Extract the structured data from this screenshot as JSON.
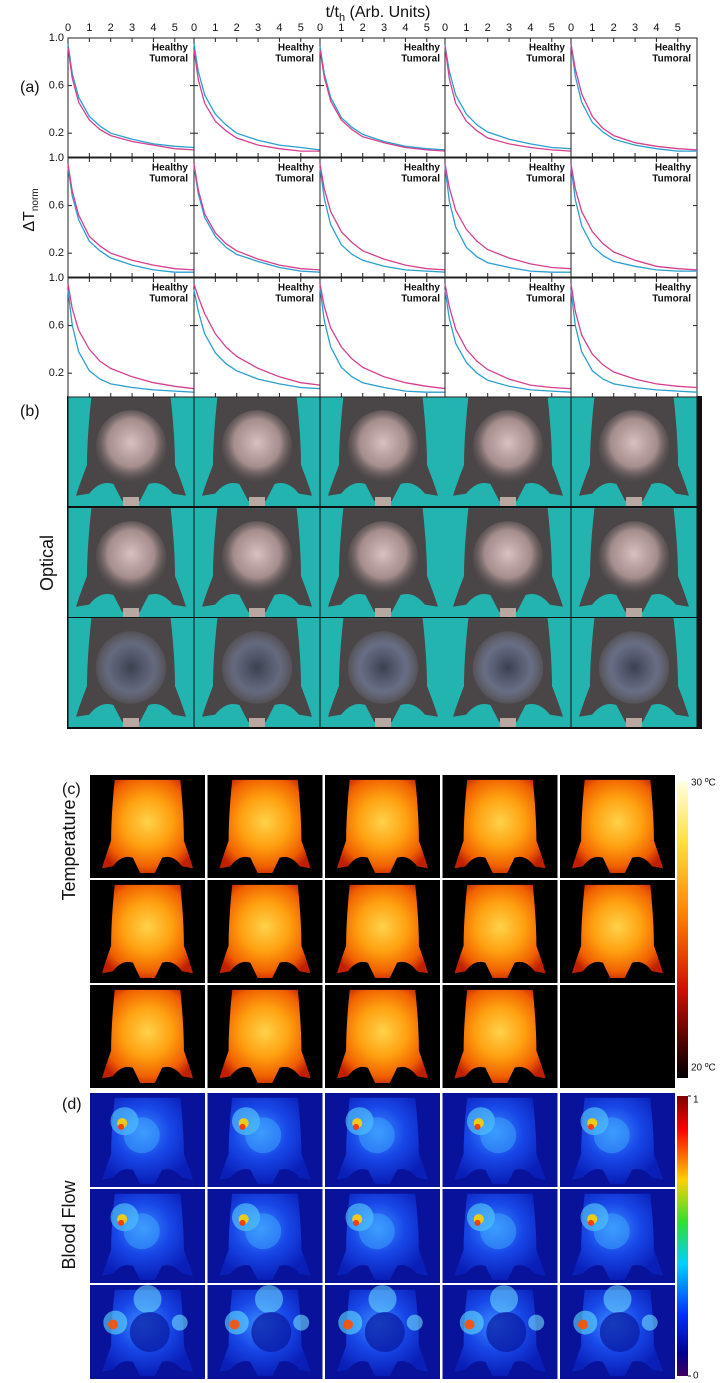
{
  "figure": {
    "xlabel": {
      "main": "t/t",
      "sub": "h",
      "rest": " (Arb. Units)"
    },
    "ylabel": {
      "main": "ΔT",
      "sub": "norm"
    },
    "panels": [
      "(a)",
      "(b)",
      "(c)",
      "(d)"
    ],
    "row_labels": {
      "optical": "Optical",
      "temperature": "Temperature",
      "blood_flow": "Blood Flow"
    },
    "temperature_colorbar": {
      "max": "30 ºC",
      "min": "20 ºC"
    },
    "flow_colorbar": {
      "ticks": [
        0,
        1
      ]
    }
  },
  "chart_data": [
    {
      "type": "line",
      "x": [
        0,
        0.2,
        0.5,
        1,
        1.5,
        2,
        3,
        4,
        5,
        5.9
      ],
      "xlim": [
        0,
        5.9
      ],
      "ylim": [
        0,
        1
      ],
      "xticks": [
        0,
        1,
        2,
        3,
        4,
        5
      ],
      "yticks": [
        0.2,
        0.6,
        {
          "value": 1,
          "label": "1.0"
        }
      ],
      "series": [
        {
          "name": "Healthy",
          "color": "#2b9fd1",
          "values": [
            0.95,
            0.7,
            0.5,
            0.34,
            0.26,
            0.2,
            0.15,
            0.11,
            0.09,
            0.08
          ]
        },
        {
          "name": "Tumoral",
          "color": "#d6408f",
          "values": [
            0.92,
            0.66,
            0.46,
            0.31,
            0.23,
            0.18,
            0.13,
            0.1,
            0.07,
            0.06
          ]
        }
      ]
    },
    {
      "type": "line",
      "x": [
        0,
        0.2,
        0.5,
        1,
        1.5,
        2,
        3,
        4,
        5,
        5.9
      ],
      "xlim": [
        0,
        5.9
      ],
      "ylim": [
        0,
        1
      ],
      "xticks": [
        0,
        1,
        2,
        3,
        4,
        5
      ],
      "yticks": [
        0.2,
        0.6,
        {
          "value": 1,
          "label": "1.0"
        }
      ],
      "series": [
        {
          "name": "Healthy",
          "color": "#2b9fd1",
          "values": [
            0.95,
            0.72,
            0.52,
            0.36,
            0.27,
            0.2,
            0.14,
            0.1,
            0.08,
            0.06
          ]
        },
        {
          "name": "Tumoral",
          "color": "#d6408f",
          "values": [
            0.9,
            0.65,
            0.45,
            0.3,
            0.22,
            0.16,
            0.1,
            0.07,
            0.05,
            0.05
          ]
        }
      ]
    },
    {
      "type": "line",
      "x": [
        0,
        0.2,
        0.5,
        1,
        1.5,
        2,
        3,
        4,
        5,
        5.9
      ],
      "xlim": [
        0,
        5.9
      ],
      "ylim": [
        0,
        1
      ],
      "xticks": [
        0,
        1,
        2,
        3,
        4,
        5
      ],
      "yticks": [
        0.2,
        0.6,
        {
          "value": 1,
          "label": "1.0"
        }
      ],
      "series": [
        {
          "name": "Healthy",
          "color": "#2b9fd1",
          "values": [
            0.93,
            0.7,
            0.5,
            0.33,
            0.25,
            0.19,
            0.13,
            0.09,
            0.07,
            0.06
          ]
        },
        {
          "name": "Tumoral",
          "color": "#d6408f",
          "values": [
            0.9,
            0.67,
            0.47,
            0.31,
            0.23,
            0.17,
            0.12,
            0.08,
            0.06,
            0.05
          ]
        }
      ]
    },
    {
      "type": "line",
      "x": [
        0,
        0.2,
        0.5,
        1,
        1.5,
        2,
        3,
        4,
        5,
        5.9
      ],
      "xlim": [
        0,
        5.9
      ],
      "ylim": [
        0,
        1
      ],
      "xticks": [
        0,
        1,
        2,
        3,
        4,
        5
      ],
      "yticks": [
        0.2,
        0.6,
        {
          "value": 1,
          "label": "1.0"
        }
      ],
      "series": [
        {
          "name": "Healthy",
          "color": "#2b9fd1",
          "values": [
            0.94,
            0.72,
            0.52,
            0.36,
            0.27,
            0.21,
            0.15,
            0.11,
            0.08,
            0.07
          ]
        },
        {
          "name": "Tumoral",
          "color": "#d6408f",
          "values": [
            0.93,
            0.66,
            0.45,
            0.3,
            0.22,
            0.16,
            0.11,
            0.08,
            0.06,
            0.05
          ]
        }
      ]
    },
    {
      "type": "line",
      "x": [
        0,
        0.2,
        0.5,
        1,
        1.5,
        2,
        3,
        4,
        5,
        5.9
      ],
      "xlim": [
        0,
        5.9
      ],
      "ylim": [
        0,
        1
      ],
      "xticks": [
        0,
        1,
        2,
        3,
        4,
        5
      ],
      "yticks": [
        0.2,
        0.6,
        {
          "value": 1,
          "label": "1.0"
        }
      ],
      "series": [
        {
          "name": "Healthy",
          "color": "#2b9fd1",
          "values": [
            0.95,
            0.68,
            0.46,
            0.29,
            0.21,
            0.15,
            0.1,
            0.07,
            0.05,
            0.05
          ]
        },
        {
          "name": "Tumoral",
          "color": "#d6408f",
          "values": [
            0.95,
            0.74,
            0.53,
            0.34,
            0.24,
            0.18,
            0.12,
            0.09,
            0.07,
            0.06
          ]
        }
      ]
    },
    {
      "type": "line",
      "x": [
        0,
        0.2,
        0.5,
        1,
        1.5,
        2,
        3,
        4,
        5,
        5.9
      ],
      "xlim": [
        0,
        5.9
      ],
      "ylim": [
        0,
        1
      ],
      "xticks": [
        0,
        1,
        2,
        3,
        4,
        5
      ],
      "yticks": [
        0.2,
        0.6,
        {
          "value": 1,
          "label": "1.0"
        }
      ],
      "series": [
        {
          "name": "Healthy",
          "color": "#2b9fd1",
          "values": [
            0.92,
            0.68,
            0.48,
            0.3,
            0.22,
            0.16,
            0.1,
            0.06,
            0.04,
            0.04
          ]
        },
        {
          "name": "Tumoral",
          "color": "#d6408f",
          "values": [
            0.95,
            0.72,
            0.52,
            0.34,
            0.26,
            0.2,
            0.14,
            0.1,
            0.07,
            0.06
          ]
        }
      ]
    },
    {
      "type": "line",
      "x": [
        0,
        0.2,
        0.5,
        1,
        1.5,
        2,
        3,
        4,
        5,
        5.9
      ],
      "xlim": [
        0,
        5.9
      ],
      "ylim": [
        0,
        1
      ],
      "xticks": [
        0,
        1,
        2,
        3,
        4,
        5
      ],
      "yticks": [
        0.2,
        0.6,
        {
          "value": 1,
          "label": "1.0"
        }
      ],
      "series": [
        {
          "name": "Healthy",
          "color": "#2b9fd1",
          "values": [
            0.93,
            0.7,
            0.5,
            0.34,
            0.25,
            0.19,
            0.13,
            0.08,
            0.05,
            0.04
          ]
        },
        {
          "name": "Tumoral",
          "color": "#d6408f",
          "values": [
            0.95,
            0.73,
            0.53,
            0.37,
            0.28,
            0.22,
            0.15,
            0.1,
            0.07,
            0.06
          ]
        }
      ]
    },
    {
      "type": "line",
      "x": [
        0,
        0.2,
        0.5,
        1,
        1.5,
        2,
        3,
        4,
        5,
        5.9
      ],
      "xlim": [
        0,
        5.9
      ],
      "ylim": [
        0,
        1
      ],
      "xticks": [
        0,
        1,
        2,
        3,
        4,
        5
      ],
      "yticks": [
        0.2,
        0.6,
        {
          "value": 1,
          "label": "1.0"
        }
      ],
      "series": [
        {
          "name": "Healthy",
          "color": "#2b9fd1",
          "values": [
            0.92,
            0.66,
            0.44,
            0.27,
            0.19,
            0.14,
            0.09,
            0.06,
            0.05,
            0.04
          ]
        },
        {
          "name": "Tumoral",
          "color": "#d6408f",
          "values": [
            0.95,
            0.74,
            0.55,
            0.38,
            0.29,
            0.22,
            0.15,
            0.1,
            0.07,
            0.06
          ]
        }
      ]
    },
    {
      "type": "line",
      "x": [
        0,
        0.2,
        0.5,
        1,
        1.5,
        2,
        3,
        4,
        5,
        5.9
      ],
      "xlim": [
        0,
        5.9
      ],
      "ylim": [
        0,
        1
      ],
      "xticks": [
        0,
        1,
        2,
        3,
        4,
        5
      ],
      "yticks": [
        0.2,
        0.6,
        {
          "value": 1,
          "label": "1.0"
        }
      ],
      "series": [
        {
          "name": "Healthy",
          "color": "#2b9fd1",
          "values": [
            0.93,
            0.64,
            0.42,
            0.25,
            0.17,
            0.12,
            0.08,
            0.05,
            0.04,
            0.04
          ]
        },
        {
          "name": "Tumoral",
          "color": "#d6408f",
          "values": [
            0.95,
            0.75,
            0.56,
            0.4,
            0.3,
            0.23,
            0.16,
            0.11,
            0.08,
            0.07
          ]
        }
      ]
    },
    {
      "type": "line",
      "x": [
        0,
        0.2,
        0.5,
        1,
        1.5,
        2,
        3,
        4,
        5,
        5.9
      ],
      "xlim": [
        0,
        5.9
      ],
      "ylim": [
        0,
        1
      ],
      "xticks": [
        0,
        1,
        2,
        3,
        4,
        5
      ],
      "yticks": [
        0.2,
        0.6,
        {
          "value": 1,
          "label": "1.0"
        }
      ],
      "series": [
        {
          "name": "Healthy",
          "color": "#2b9fd1",
          "values": [
            0.93,
            0.65,
            0.43,
            0.26,
            0.18,
            0.13,
            0.09,
            0.06,
            0.05,
            0.05
          ]
        },
        {
          "name": "Tumoral",
          "color": "#d6408f",
          "values": [
            0.95,
            0.74,
            0.55,
            0.38,
            0.28,
            0.21,
            0.14,
            0.09,
            0.07,
            0.06
          ]
        }
      ]
    },
    {
      "type": "line",
      "x": [
        0,
        0.2,
        0.5,
        1,
        1.5,
        2,
        3,
        4,
        5,
        5.9
      ],
      "xlim": [
        0,
        5.9
      ],
      "ylim": [
        0,
        1
      ],
      "xticks": [
        0,
        1,
        2,
        3,
        4,
        5
      ],
      "yticks": [
        0.2,
        0.6,
        {
          "value": 1,
          "label": "1.0"
        }
      ],
      "series": [
        {
          "name": "Healthy",
          "color": "#2b9fd1",
          "values": [
            0.9,
            0.6,
            0.38,
            0.22,
            0.15,
            0.11,
            0.08,
            0.06,
            0.05,
            0.04
          ]
        },
        {
          "name": "Tumoral",
          "color": "#d6408f",
          "values": [
            0.95,
            0.74,
            0.56,
            0.4,
            0.3,
            0.24,
            0.17,
            0.12,
            0.09,
            0.07
          ]
        }
      ]
    },
    {
      "type": "line",
      "x": [
        0,
        0.2,
        0.5,
        1,
        1.5,
        2,
        3,
        4,
        5,
        5.9
      ],
      "xlim": [
        0,
        5.9
      ],
      "ylim": [
        0,
        1
      ],
      "xticks": [
        0,
        1,
        2,
        3,
        4,
        5
      ],
      "yticks": [
        0.2,
        0.6,
        {
          "value": 1,
          "label": "1.0"
        }
      ],
      "series": [
        {
          "name": "Healthy",
          "color": "#2b9fd1",
          "values": [
            0.9,
            0.72,
            0.53,
            0.37,
            0.28,
            0.22,
            0.15,
            0.11,
            0.08,
            0.07
          ]
        },
        {
          "name": "Tumoral",
          "color": "#d6408f",
          "values": [
            0.95,
            0.84,
            0.7,
            0.53,
            0.42,
            0.34,
            0.24,
            0.17,
            0.12,
            0.1
          ]
        }
      ]
    },
    {
      "type": "line",
      "x": [
        0,
        0.2,
        0.5,
        1,
        1.5,
        2,
        3,
        4,
        5,
        5.9
      ],
      "xlim": [
        0,
        5.9
      ],
      "ylim": [
        0,
        1
      ],
      "xticks": [
        0,
        1,
        2,
        3,
        4,
        5
      ],
      "yticks": [
        0.2,
        0.6,
        {
          "value": 1,
          "label": "1.0"
        }
      ],
      "series": [
        {
          "name": "Healthy",
          "color": "#2b9fd1",
          "values": [
            0.92,
            0.64,
            0.42,
            0.25,
            0.17,
            0.12,
            0.08,
            0.05,
            0.04,
            0.04
          ]
        },
        {
          "name": "Tumoral",
          "color": "#d6408f",
          "values": [
            0.95,
            0.76,
            0.58,
            0.42,
            0.32,
            0.25,
            0.17,
            0.12,
            0.09,
            0.07
          ]
        }
      ]
    },
    {
      "type": "line",
      "x": [
        0,
        0.2,
        0.5,
        1,
        1.5,
        2,
        3,
        4,
        5,
        5.9
      ],
      "xlim": [
        0,
        5.9
      ],
      "ylim": [
        0,
        1
      ],
      "xticks": [
        0,
        1,
        2,
        3,
        4,
        5
      ],
      "yticks": [
        0.2,
        0.6,
        {
          "value": 1,
          "label": "1.0"
        }
      ],
      "series": [
        {
          "name": "Healthy",
          "color": "#2b9fd1",
          "values": [
            0.9,
            0.66,
            0.45,
            0.29,
            0.2,
            0.14,
            0.09,
            0.06,
            0.05,
            0.04
          ]
        },
        {
          "name": "Tumoral",
          "color": "#d6408f",
          "values": [
            0.95,
            0.76,
            0.57,
            0.4,
            0.3,
            0.23,
            0.15,
            0.1,
            0.08,
            0.07
          ]
        }
      ]
    },
    {
      "type": "line",
      "x": [
        0,
        0.2,
        0.5,
        1,
        1.5,
        2,
        3,
        4,
        5,
        5.9
      ],
      "xlim": [
        0,
        5.9
      ],
      "ylim": [
        0,
        1
      ],
      "xticks": [
        0,
        1,
        2,
        3,
        4,
        5
      ],
      "yticks": [
        0.2,
        0.6,
        {
          "value": 1,
          "label": "1.0"
        }
      ],
      "series": [
        {
          "name": "Healthy",
          "color": "#2b9fd1",
          "values": [
            0.9,
            0.6,
            0.38,
            0.22,
            0.15,
            0.11,
            0.08,
            0.06,
            0.05,
            0.04
          ]
        },
        {
          "name": "Tumoral",
          "color": "#d6408f",
          "values": [
            0.95,
            0.72,
            0.52,
            0.36,
            0.27,
            0.21,
            0.15,
            0.11,
            0.09,
            0.08
          ]
        }
      ]
    }
  ]
}
